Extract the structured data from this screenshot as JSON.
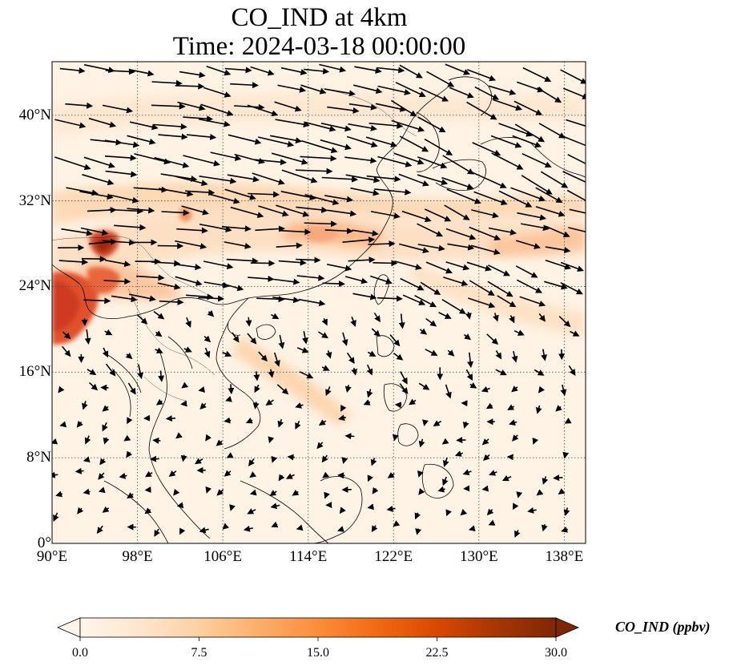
{
  "title": {
    "line1": "CO_IND at 4km",
    "line2": "Time: 2024-03-18 00:00:00"
  },
  "map": {
    "lon_range": [
      90,
      140
    ],
    "lat_range": [
      0,
      45
    ],
    "x_ticks": [
      {
        "lon": 90,
        "label": "90°E"
      },
      {
        "lon": 98,
        "label": "98°E"
      },
      {
        "lon": 106,
        "label": "106°E"
      },
      {
        "lon": 114,
        "label": "114°E"
      },
      {
        "lon": 122,
        "label": "122°E"
      },
      {
        "lon": 130,
        "label": "130°E"
      },
      {
        "lon": 138,
        "label": "138°E"
      }
    ],
    "y_ticks": [
      {
        "lat": 0,
        "label": "0°"
      },
      {
        "lat": 8,
        "label": "8°N"
      },
      {
        "lat": 16,
        "label": "16°N"
      },
      {
        "lat": 24,
        "label": "24°N"
      },
      {
        "lat": 32,
        "label": "32°N"
      },
      {
        "lat": 40,
        "label": "40°N"
      }
    ],
    "gridlines": "dotted"
  },
  "colorbar": {
    "label": "CO_IND (ppbv)",
    "min": 0.0,
    "max": 30.0,
    "extend": "both",
    "ticks": [
      {
        "value": 0.0,
        "label": "0.0"
      },
      {
        "value": 7.5,
        "label": "7.5"
      },
      {
        "value": 15.0,
        "label": "15.0"
      },
      {
        "value": 22.5,
        "label": "22.5"
      },
      {
        "value": 30.0,
        "label": "30.0"
      }
    ],
    "colors": [
      "#fff5eb",
      "#fee6ce",
      "#fdd0a2",
      "#fdae6b",
      "#fd8d3c",
      "#f16913",
      "#d94801",
      "#a63603",
      "#7f2704"
    ]
  }
}
